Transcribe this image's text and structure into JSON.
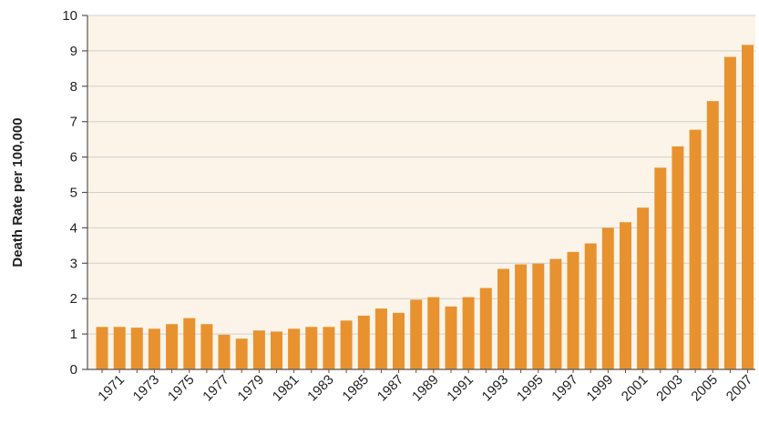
{
  "chart_data": {
    "type": "bar",
    "title": "",
    "xlabel": "",
    "ylabel": "Death Rate per 100,000",
    "ylim": [
      0,
      10
    ],
    "yticks": [
      0,
      1,
      2,
      3,
      4,
      5,
      6,
      7,
      8,
      9,
      10
    ],
    "grid": "horizontal",
    "colors": {
      "bar": "#e8922f",
      "plot_background": "#fcf4e8",
      "gridline": "#cfcfcf",
      "axis": "#555555"
    },
    "categories": [
      "1970",
      "1971",
      "1972",
      "1973",
      "1974",
      "1975",
      "1976",
      "1977",
      "1978",
      "1979",
      "1980",
      "1981",
      "1982",
      "1983",
      "1984",
      "1985",
      "1986",
      "1987",
      "1988",
      "1989",
      "1990",
      "1991",
      "1992",
      "1993",
      "1994",
      "1995",
      "1996",
      "1997",
      "1998",
      "1999",
      "2000",
      "2001",
      "2002",
      "2003",
      "2004",
      "2005",
      "2006",
      "2007"
    ],
    "tick_labels": [
      "1971",
      "1973",
      "1975",
      "1977",
      "1979",
      "1981",
      "1983",
      "1985",
      "1987",
      "1989",
      "1991",
      "1993",
      "1995",
      "1997",
      "1999",
      "2001",
      "2003",
      "2005",
      "2007"
    ],
    "values": [
      1.2,
      1.2,
      1.18,
      1.15,
      1.28,
      1.45,
      1.28,
      0.98,
      0.87,
      1.1,
      1.07,
      1.15,
      1.2,
      1.2,
      1.38,
      1.52,
      1.72,
      1.6,
      1.97,
      2.04,
      1.78,
      2.04,
      2.3,
      2.84,
      2.97,
      2.99,
      3.12,
      3.32,
      3.56,
      4.0,
      4.16,
      4.57,
      5.7,
      6.3,
      6.77,
      7.58,
      8.83,
      9.17
    ]
  }
}
